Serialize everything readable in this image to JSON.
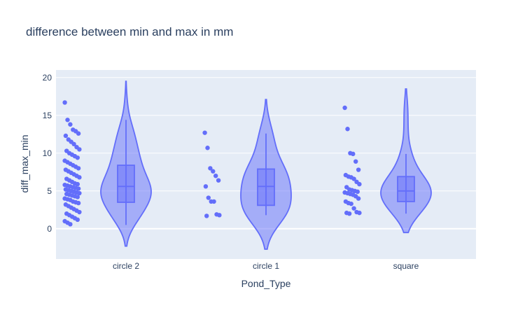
{
  "chart_data": {
    "type": "violin",
    "title": "difference between min and max in mm",
    "xlabel": "Pond_Type",
    "ylabel": "diff_max_min",
    "categories": [
      "circle 2",
      "circle 1",
      "square"
    ],
    "ylim": [
      -4,
      21
    ],
    "yticks": [
      0,
      5,
      10,
      15,
      20
    ],
    "grid": true,
    "colors": {
      "plot_bg": "#e5ecf6",
      "grid": "#ffffff",
      "violin_line": "#636efa",
      "violin_fill": "rgba(99,110,250,0.5)",
      "point": "#636efa",
      "text": "#2a3f5f"
    },
    "series": [
      {
        "category": "circle 2",
        "violin_extent": [
          -2.3,
          19.5
        ],
        "box": {
          "q1": 3.5,
          "median": 5.6,
          "q3": 8.4,
          "whisker_low": 0.5,
          "whisker_high": 14.4
        },
        "points": [
          16.7,
          14.4,
          13.8,
          13.1,
          12.9,
          12.6,
          12.3,
          11.8,
          11.5,
          11.2,
          10.8,
          10.5,
          10.3,
          10.0,
          9.8,
          9.6,
          9.4,
          9.0,
          8.8,
          8.6,
          8.4,
          8.2,
          8.0,
          7.8,
          7.6,
          7.4,
          7.2,
          7.0,
          6.8,
          6.6,
          6.4,
          6.2,
          6.0,
          5.9,
          5.8,
          5.7,
          5.6,
          5.5,
          5.4,
          5.3,
          5.2,
          5.1,
          5.0,
          4.9,
          4.8,
          4.7,
          4.6,
          4.5,
          4.4,
          4.3,
          4.2,
          4.0,
          3.9,
          3.8,
          3.6,
          3.5,
          3.4,
          3.2,
          3.0,
          2.8,
          2.6,
          2.4,
          2.2,
          2.0,
          1.8,
          1.6,
          1.4,
          1.2,
          1.0,
          0.8,
          0.6
        ]
      },
      {
        "category": "circle 1",
        "violin_extent": [
          -2.7,
          17.1
        ],
        "box": {
          "q1": 3.1,
          "median": 5.6,
          "q3": 7.9,
          "whisker_low": 1.8,
          "whisker_high": 12.6
        },
        "points": [
          12.7,
          10.7,
          8.0,
          7.6,
          7.0,
          6.4,
          5.6,
          4.1,
          3.6,
          3.6,
          1.9,
          1.8,
          1.7
        ]
      },
      {
        "category": "square",
        "violin_extent": [
          -0.5,
          18.5
        ],
        "box": {
          "q1": 3.6,
          "median": 5.0,
          "q3": 6.9,
          "whisker_low": 2.0,
          "whisker_high": 9.9
        },
        "points": [
          16.0,
          13.2,
          10.0,
          9.9,
          8.9,
          7.8,
          7.1,
          6.9,
          6.8,
          6.6,
          6.2,
          5.9,
          5.5,
          5.2,
          5.1,
          5.0,
          4.9,
          4.8,
          4.7,
          4.6,
          4.5,
          4.3,
          4.0,
          3.6,
          3.4,
          3.3,
          2.7,
          2.2,
          2.1,
          2.1,
          2.0
        ]
      }
    ]
  }
}
